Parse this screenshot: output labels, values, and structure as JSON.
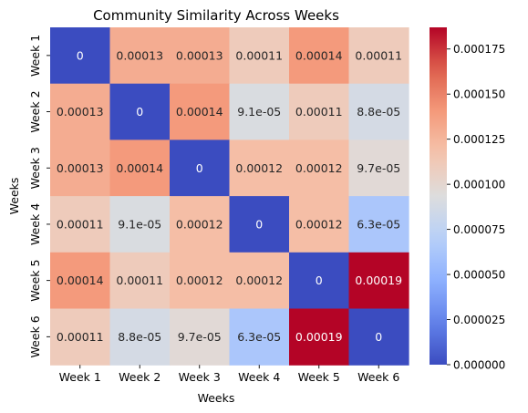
{
  "chart_data": {
    "type": "heatmap",
    "title": "Community Similarity Across Weeks",
    "xlabel": "Weeks",
    "ylabel": "Weeks",
    "x_categories": [
      "Week 1",
      "Week 2",
      "Week 3",
      "Week 4",
      "Week 5",
      "Week 6"
    ],
    "y_categories": [
      "Week 1",
      "Week 2",
      "Week 3",
      "Week 4",
      "Week 5",
      "Week 6"
    ],
    "values": [
      [
        0,
        0.00013,
        0.00013,
        0.00011,
        0.00014,
        0.00011
      ],
      [
        0.00013,
        0,
        0.00014,
        9.1e-05,
        0.00011,
        8.8e-05
      ],
      [
        0.00013,
        0.00014,
        0,
        0.00012,
        0.00012,
        9.7e-05
      ],
      [
        0.00011,
        9.1e-05,
        0.00012,
        0,
        0.00012,
        6.3e-05
      ],
      [
        0.00014,
        0.00011,
        0.00012,
        0.00012,
        0,
        0.00019
      ],
      [
        0.00011,
        8.8e-05,
        9.7e-05,
        6.3e-05,
        0.00019,
        0
      ]
    ],
    "annotations": [
      [
        "0",
        "0.00013",
        "0.00013",
        "0.00011",
        "0.00014",
        "0.00011"
      ],
      [
        "0.00013",
        "0",
        "0.00014",
        "9.1e-05",
        "0.00011",
        "8.8e-05"
      ],
      [
        "0.00013",
        "0.00014",
        "0",
        "0.00012",
        "0.00012",
        "9.7e-05"
      ],
      [
        "0.00011",
        "9.1e-05",
        "0.00012",
        "0",
        "0.00012",
        "6.3e-05"
      ],
      [
        "0.00014",
        "0.00011",
        "0.00012",
        "0.00012",
        "0",
        "0.00019"
      ],
      [
        "0.00011",
        "8.8e-05",
        "9.7e-05",
        "6.3e-05",
        "0.00019",
        "0"
      ]
    ],
    "colormap": "coolwarm",
    "colorbar": {
      "range": [
        0,
        0.000187
      ],
      "ticks": [
        0,
        2.5e-05,
        5e-05,
        7.5e-05,
        0.0001,
        0.000125,
        0.00015,
        0.000175
      ],
      "tick_labels": [
        "0.000000",
        "0.000025",
        "0.000050",
        "0.000075",
        "0.000100",
        "0.000125",
        "0.000150",
        "0.000175"
      ]
    }
  }
}
